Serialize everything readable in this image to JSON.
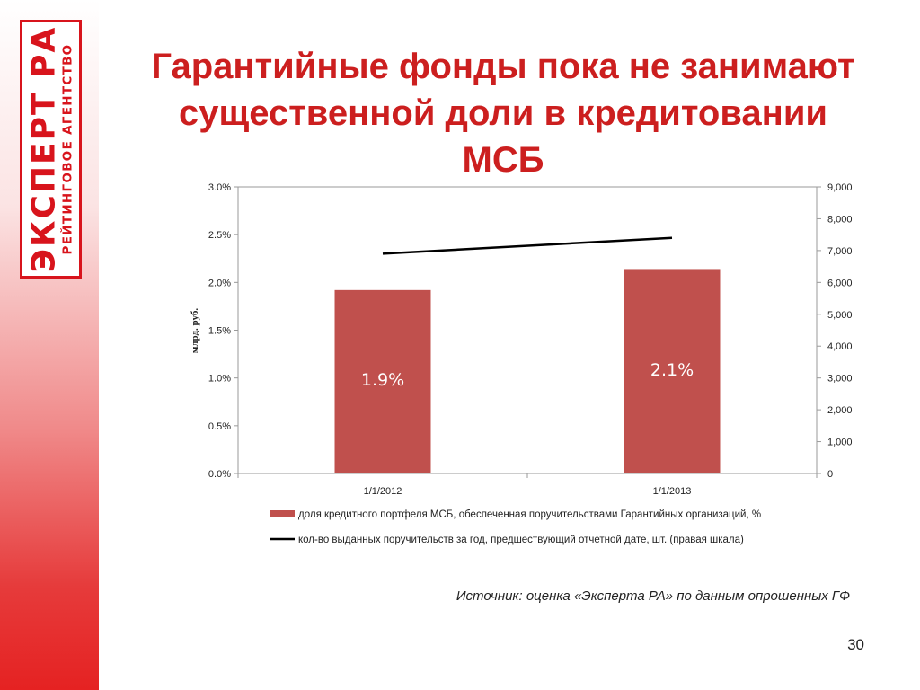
{
  "logo": {
    "main": "ЭКСПЕРТ РА",
    "sub": "РЕЙТИНГОВОЕ АГЕНТСТВО",
    "color": "#d8141c"
  },
  "slide": {
    "title": "Гарантийные фонды пока не занимают существенной доли в кредитовании МСБ",
    "source": "Источник: оценка «Эксперта РА» по данным опрошенных ГФ",
    "page_number": "30"
  },
  "chart_data": {
    "type": "bar",
    "categories": [
      "1/1/2012",
      "1/1/2013"
    ],
    "ylabel": "млрд. руб.",
    "ylim": [
      0,
      0.03
    ],
    "y_ticks": [
      "0.0%",
      "0.5%",
      "1.0%",
      "1.5%",
      "2.0%",
      "2.5%",
      "3.0%"
    ],
    "y2lim": [
      0,
      9000
    ],
    "y2_ticks": [
      "0",
      "1,000",
      "2,000",
      "3,000",
      "4,000",
      "5,000",
      "6,000",
      "7,000",
      "8,000",
      "9,000"
    ],
    "grid": false,
    "legend_position": "bottom",
    "series": [
      {
        "name": "доля кредитного портфеля МСБ, обеспеченная поручительствами Гарантийных организаций, %",
        "type": "bar",
        "axis": "left",
        "values": [
          0.0192,
          0.0214
        ],
        "labels": [
          "1.9%",
          "2.1%"
        ],
        "color": "#c0504d"
      },
      {
        "name": "кол-во выданных поручительств за год, предшествующий отчетной дате, шт. (правая шкала)",
        "type": "line",
        "axis": "right",
        "values": [
          6900,
          7400
        ],
        "color": "#000000"
      }
    ]
  }
}
